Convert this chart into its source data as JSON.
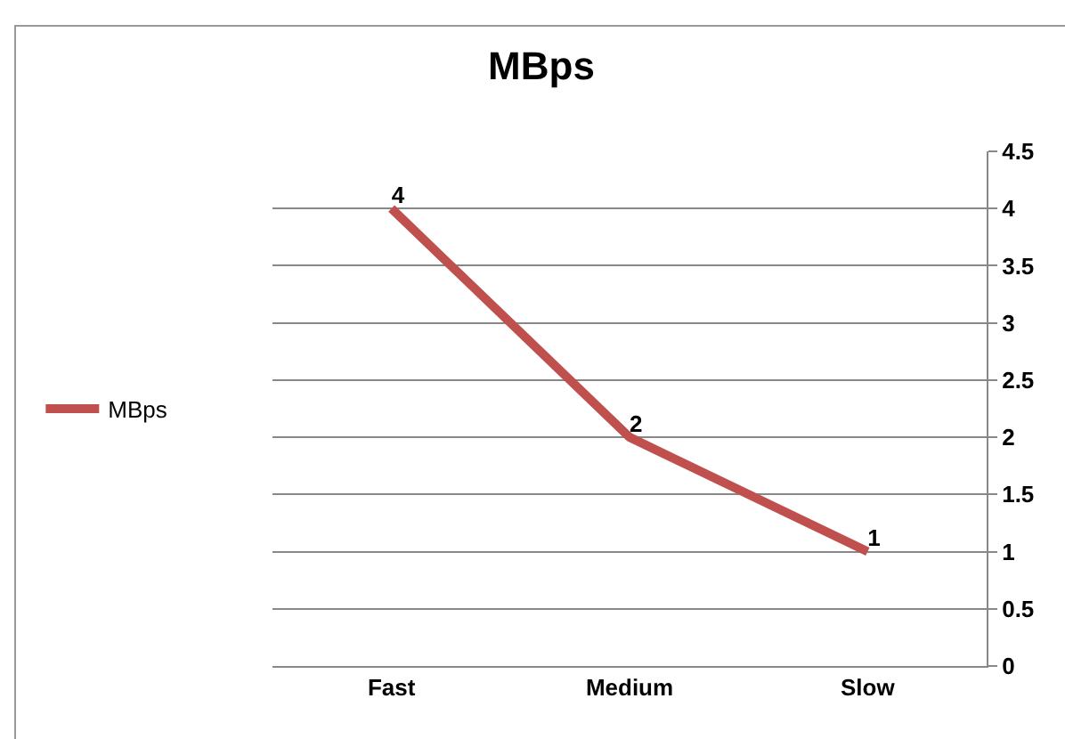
{
  "chart_data": {
    "type": "line",
    "title": "MBps",
    "categories": [
      "Fast",
      "Medium",
      "Slow"
    ],
    "series": [
      {
        "name": "MBps",
        "color": "#c0504d",
        "values": [
          4,
          2,
          1
        ]
      }
    ],
    "ylim": [
      0,
      4.5
    ],
    "yticks": [
      0,
      0.5,
      1,
      1.5,
      2,
      2.5,
      3,
      3.5,
      4,
      4.5
    ],
    "grid": "y",
    "legend": "left",
    "data_labels": true,
    "marker": "none",
    "line_style": "solid"
  }
}
